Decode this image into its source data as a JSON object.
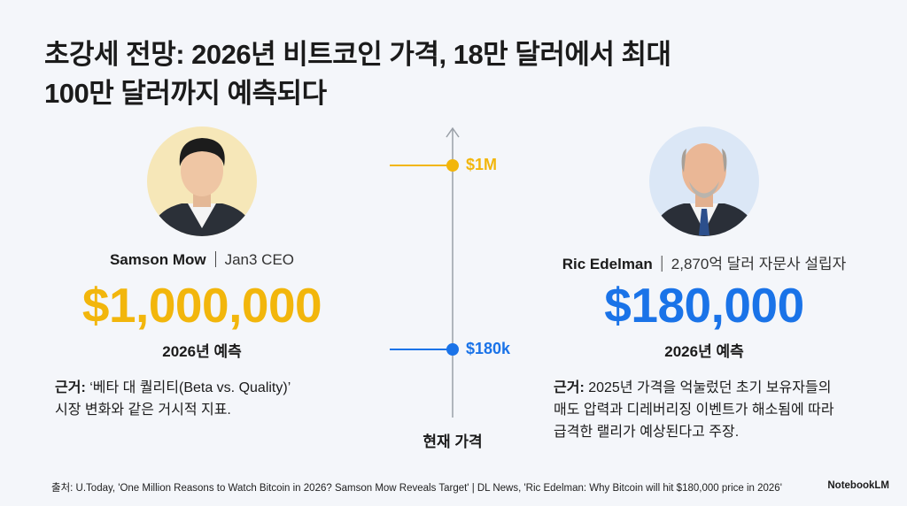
{
  "title": [
    "초강세 전망: 2026년 비트코인 가격, 18만 달러에서 최대",
    "100만 달러까지 예측되다"
  ],
  "left": {
    "name": "Samson Mow",
    "role": "Jan3 CEO",
    "price": "$1,000,000",
    "caption": "2026년 예측",
    "basis_label": "근거:",
    "basis": [
      "‘베타 대 퀄리티(Beta vs. Quality)’",
      "시장 변화와 같은 거시적 지표."
    ]
  },
  "right": {
    "name": "Ric Edelman",
    "role": "2,870억 달러 자문사 설립자",
    "price": "$180,000",
    "caption": "2026년 예측",
    "basis_label": "근거:",
    "basis": [
      "2025년 가격을 억눌렀던 초기 보유자들의",
      "매도 압력과 디레버리징 이벤트가 해소됨에 따라",
      "급격한 랠리가 예상된다고 주장."
    ]
  },
  "axis": {
    "high": "$1M",
    "low": "$180k",
    "caption": "현재 가격"
  },
  "footer": {
    "source": "출처: U.Today, 'One Million Reasons to Watch Bitcoin in 2026? Samson Mow Reveals Target' | DL News, 'Ric Edelman: Why Bitcoin will hit $180,000 price in 2026'",
    "brand": "NotebookLM"
  }
}
